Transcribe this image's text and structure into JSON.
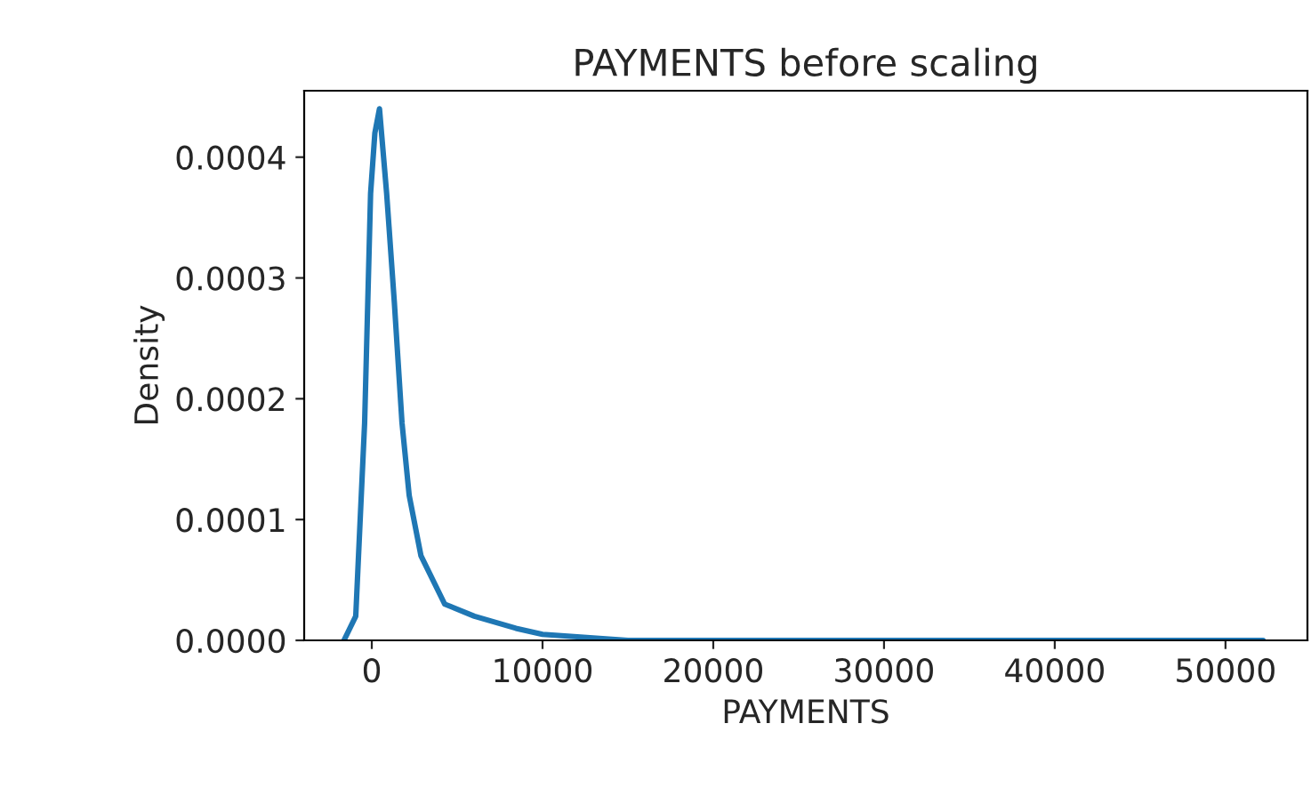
{
  "chart_data": {
    "type": "line",
    "title": "PAYMENTS before scaling",
    "xlabel": "PAYMENTS",
    "ylabel": "Density",
    "x": [
      -1630,
      -940,
      -420,
      -70,
      180,
      450,
      870,
      1320,
      1770,
      2190,
      2880,
      4270,
      6010,
      8440,
      10000,
      15000,
      20000,
      30000,
      40000,
      52200
    ],
    "series": [
      {
        "color": "#1f77b4",
        "values": [
          0,
          2e-05,
          0.00018,
          0.00037,
          0.00042,
          0.00044,
          0.00037,
          0.00028,
          0.00018,
          0.00012,
          7e-05,
          3e-05,
          2e-05,
          1e-05,
          5e-06,
          0,
          0,
          0,
          0,
          0
        ]
      }
    ],
    "xlim": [
      -3960,
      54800
    ],
    "ylim": [
      0,
      0.000455
    ],
    "xticks": [
      0,
      10000,
      20000,
      30000,
      40000,
      50000
    ],
    "yticks": [
      {
        "value": 0,
        "label": "0.0000"
      },
      {
        "value": 0.0001,
        "label": "0.0001"
      },
      {
        "value": 0.0002,
        "label": "0.0002"
      },
      {
        "value": 0.0003,
        "label": "0.0003"
      },
      {
        "value": 0.0004,
        "label": "0.0004"
      }
    ],
    "grid": false,
    "marker": "none",
    "line_style": "solid"
  }
}
